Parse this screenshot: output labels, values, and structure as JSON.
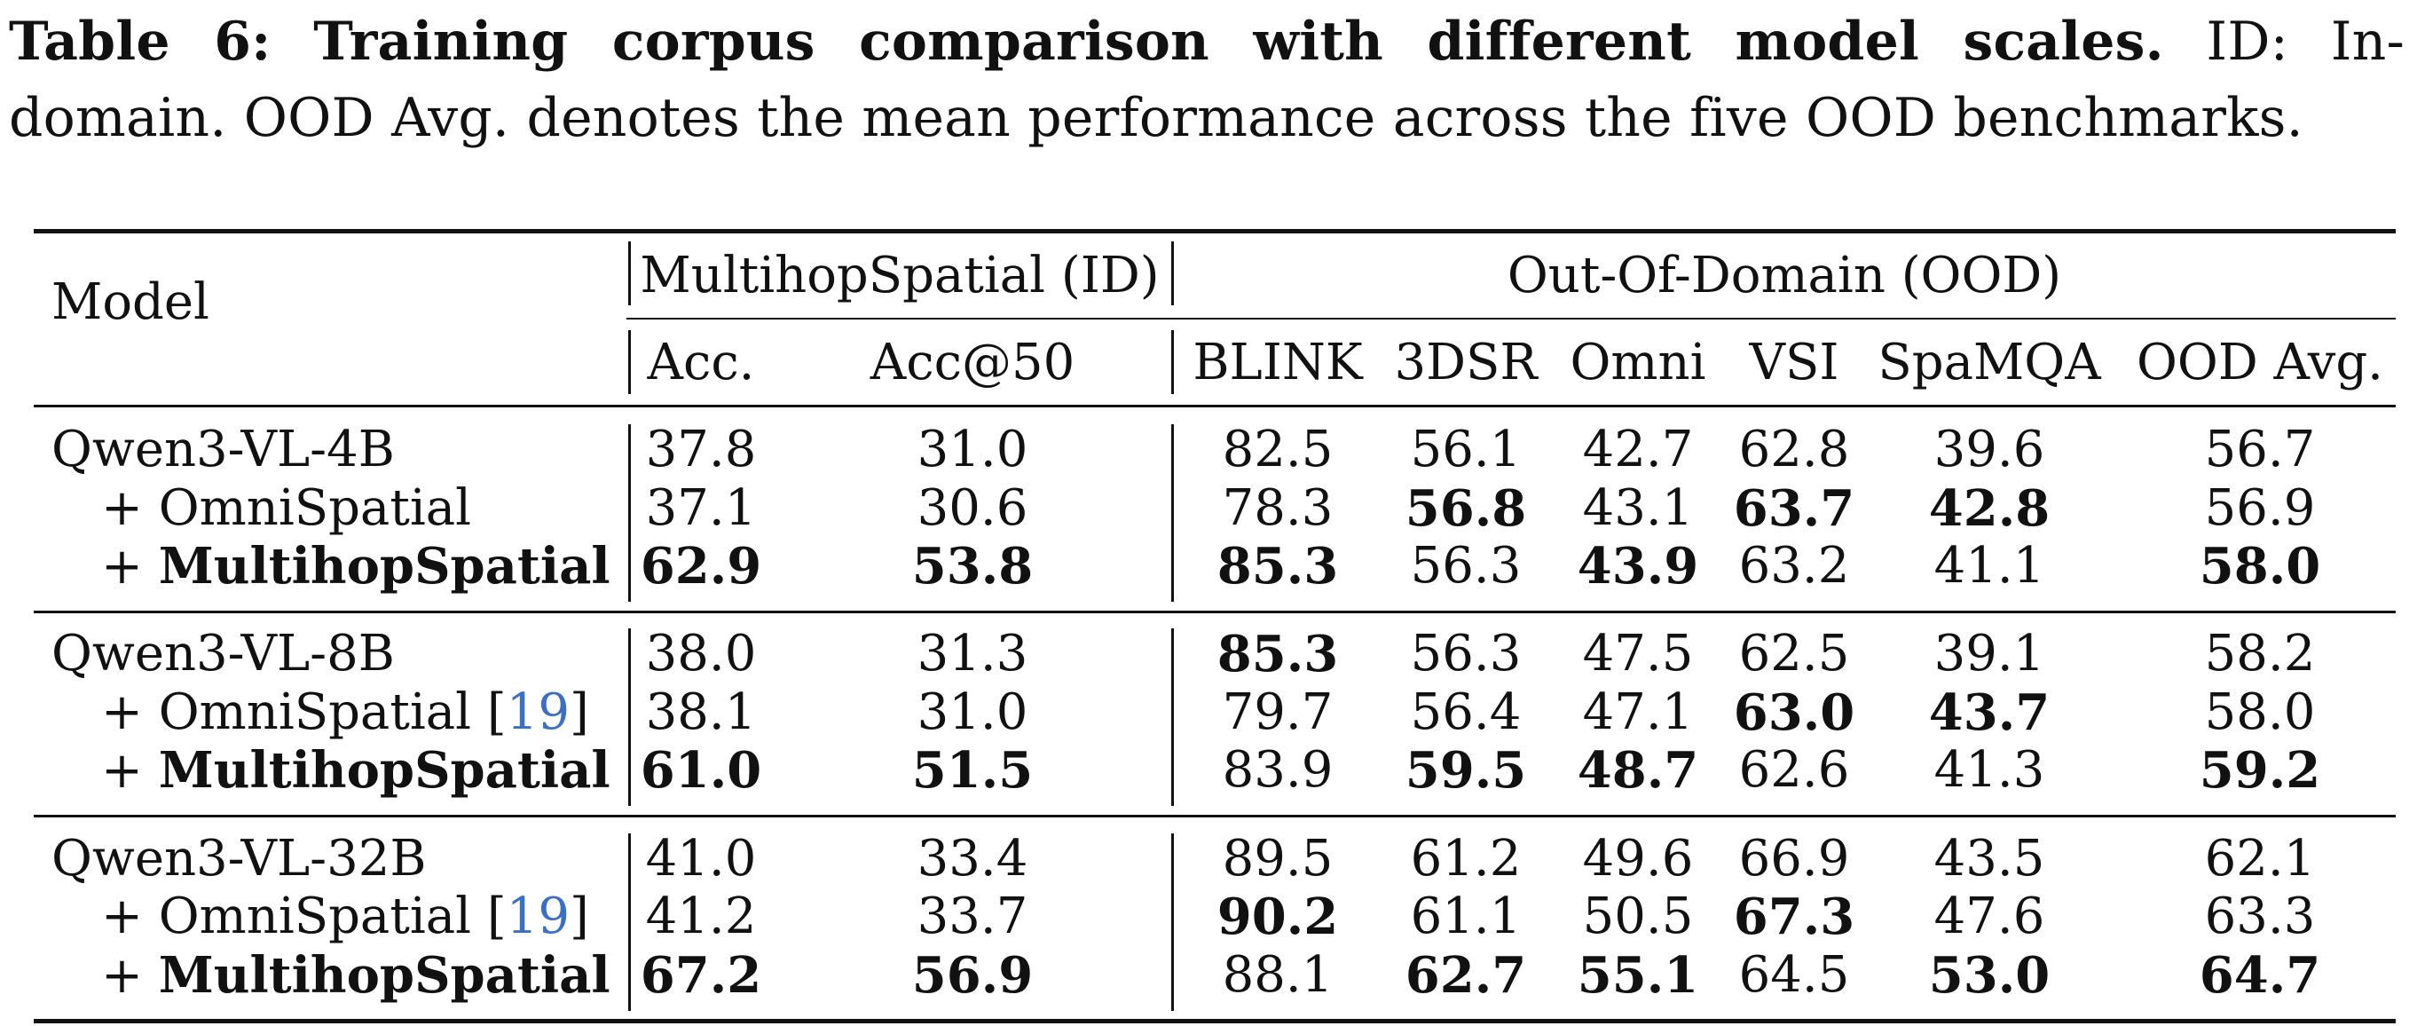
{
  "caption": {
    "label": "Table 6:",
    "title": "Training corpus comparison with different model scales.",
    "text_line1": "ID: In-",
    "text_line2": "domain. OOD Avg. denotes the mean performance across the five OOD benchmarks."
  },
  "table": {
    "model_header": "Model",
    "group_id": "MultihopSpatial (ID)",
    "group_ood": "Out-Of-Domain (OOD)",
    "columns": [
      "Acc.",
      "Acc@50",
      "BLINK",
      "3DSR",
      "Omni",
      "VSI",
      "SpaMQA",
      "OOD Avg."
    ],
    "groups": [
      {
        "rows": [
          {
            "prefix": "",
            "model": "Qwen3-VL-4B",
            "cite": "",
            "model_bold": false,
            "values": [
              "37.8",
              "31.0",
              "82.5",
              "56.1",
              "42.7",
              "62.8",
              "39.6",
              "56.7"
            ],
            "bold": [
              false,
              false,
              false,
              false,
              false,
              false,
              false,
              false
            ]
          },
          {
            "prefix": "+",
            "model": "OmniSpatial",
            "cite": "",
            "model_bold": false,
            "values": [
              "37.1",
              "30.6",
              "78.3",
              "56.8",
              "43.1",
              "63.7",
              "42.8",
              "56.9"
            ],
            "bold": [
              false,
              false,
              false,
              true,
              false,
              true,
              true,
              false
            ]
          },
          {
            "prefix": "+",
            "model": "MultihopSpatial",
            "cite": "",
            "model_bold": true,
            "values": [
              "62.9",
              "53.8",
              "85.3",
              "56.3",
              "43.9",
              "63.2",
              "41.1",
              "58.0"
            ],
            "bold": [
              true,
              true,
              true,
              false,
              true,
              false,
              false,
              true
            ]
          }
        ]
      },
      {
        "rows": [
          {
            "prefix": "",
            "model": "Qwen3-VL-8B",
            "cite": "",
            "model_bold": false,
            "values": [
              "38.0",
              "31.3",
              "85.3",
              "56.3",
              "47.5",
              "62.5",
              "39.1",
              "58.2"
            ],
            "bold": [
              false,
              false,
              true,
              false,
              false,
              false,
              false,
              false
            ]
          },
          {
            "prefix": "+",
            "model": "OmniSpatial",
            "cite": "19",
            "model_bold": false,
            "values": [
              "38.1",
              "31.0",
              "79.7",
              "56.4",
              "47.1",
              "63.0",
              "43.7",
              "58.0"
            ],
            "bold": [
              false,
              false,
              false,
              false,
              false,
              true,
              true,
              false
            ]
          },
          {
            "prefix": "+",
            "model": "MultihopSpatial",
            "cite": "",
            "model_bold": true,
            "values": [
              "61.0",
              "51.5",
              "83.9",
              "59.5",
              "48.7",
              "62.6",
              "41.3",
              "59.2"
            ],
            "bold": [
              true,
              true,
              false,
              true,
              true,
              false,
              false,
              true
            ]
          }
        ]
      },
      {
        "rows": [
          {
            "prefix": "",
            "model": "Qwen3-VL-32B",
            "cite": "",
            "model_bold": false,
            "values": [
              "41.0",
              "33.4",
              "89.5",
              "61.2",
              "49.6",
              "66.9",
              "43.5",
              "62.1"
            ],
            "bold": [
              false,
              false,
              false,
              false,
              false,
              false,
              false,
              false
            ]
          },
          {
            "prefix": "+",
            "model": "OmniSpatial",
            "cite": "19",
            "model_bold": false,
            "values": [
              "41.2",
              "33.7",
              "90.2",
              "61.1",
              "50.5",
              "67.3",
              "47.6",
              "63.3"
            ],
            "bold": [
              false,
              false,
              true,
              false,
              false,
              true,
              false,
              false
            ]
          },
          {
            "prefix": "+",
            "model": "MultihopSpatial",
            "cite": "",
            "model_bold": true,
            "values": [
              "67.2",
              "56.9",
              "88.1",
              "62.7",
              "55.1",
              "64.5",
              "53.0",
              "64.7"
            ],
            "bold": [
              true,
              true,
              false,
              true,
              true,
              false,
              true,
              true
            ]
          }
        ]
      }
    ]
  }
}
